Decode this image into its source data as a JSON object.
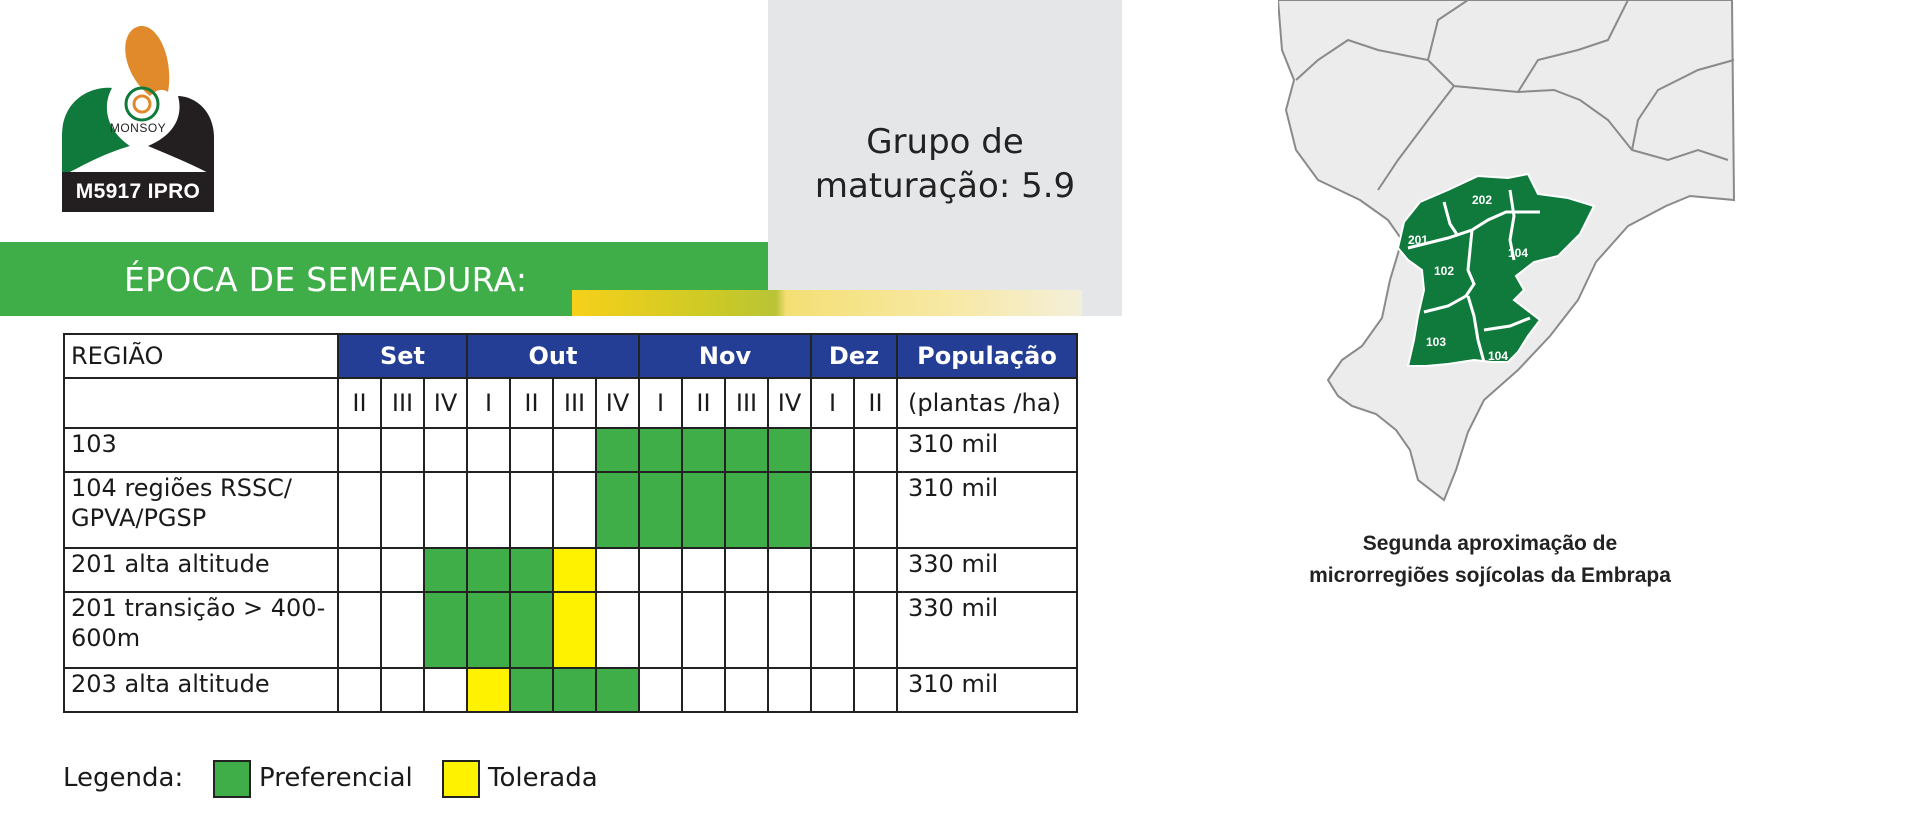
{
  "logo": {
    "brand": "MONSOY",
    "model": "M5917 IPRO"
  },
  "maturity": {
    "line1": "Grupo de",
    "line2": "maturação: 5.9"
  },
  "section_title": "ÉPOCA DE SEMEADURA:",
  "table": {
    "header_region": "REGIÃO",
    "months": [
      "Set",
      "Out",
      "Nov",
      "Dez"
    ],
    "population_header": "População",
    "population_unit": "(plantas /ha)",
    "decendials": [
      "II",
      "III",
      "IV",
      "I",
      "II",
      "III",
      "IV",
      "I",
      "II",
      "III",
      "IV",
      "I",
      "II"
    ],
    "rows": [
      {
        "region": "103",
        "population": "310 mil",
        "cells": [
          "",
          "",
          "",
          "",
          "",
          "",
          "G",
          "G",
          "G",
          "G",
          "G",
          "",
          ""
        ]
      },
      {
        "region": "104 regiões RSSC/ GPVA/PGSP",
        "population": "310 mil",
        "cells": [
          "",
          "",
          "",
          "",
          "",
          "",
          "G",
          "G",
          "G",
          "G",
          "G",
          "",
          ""
        ]
      },
      {
        "region": "201 alta altitude",
        "population": "330 mil",
        "cells": [
          "",
          "",
          "G",
          "G",
          "G",
          "Y",
          "",
          "",
          "",
          "",
          "",
          "",
          ""
        ]
      },
      {
        "region": "201 transição > 400-600m",
        "population": "330 mil",
        "cells": [
          "",
          "",
          "G",
          "G",
          "G",
          "Y",
          "",
          "",
          "",
          "",
          "",
          "",
          ""
        ]
      },
      {
        "region": "203 alta altitude",
        "population": "310 mil",
        "cells": [
          "",
          "",
          "",
          "Y",
          "G",
          "G",
          "G",
          "",
          "",
          "",
          "",
          "",
          ""
        ]
      }
    ]
  },
  "legend": {
    "label": "Legenda:",
    "preferred": "Preferencial",
    "tolerated": "Tolerada"
  },
  "colors": {
    "preferred": "#3fae49",
    "tolerated": "#fff200",
    "header_blue": "#243e96",
    "map_green": "#0f7a3c"
  },
  "map": {
    "labels": [
      "202",
      "201",
      "102",
      "104",
      "103",
      "104"
    ],
    "caption_line1": "Segunda aproximação de",
    "caption_line2": "microrregiões sojícolas da Embrapa"
  }
}
